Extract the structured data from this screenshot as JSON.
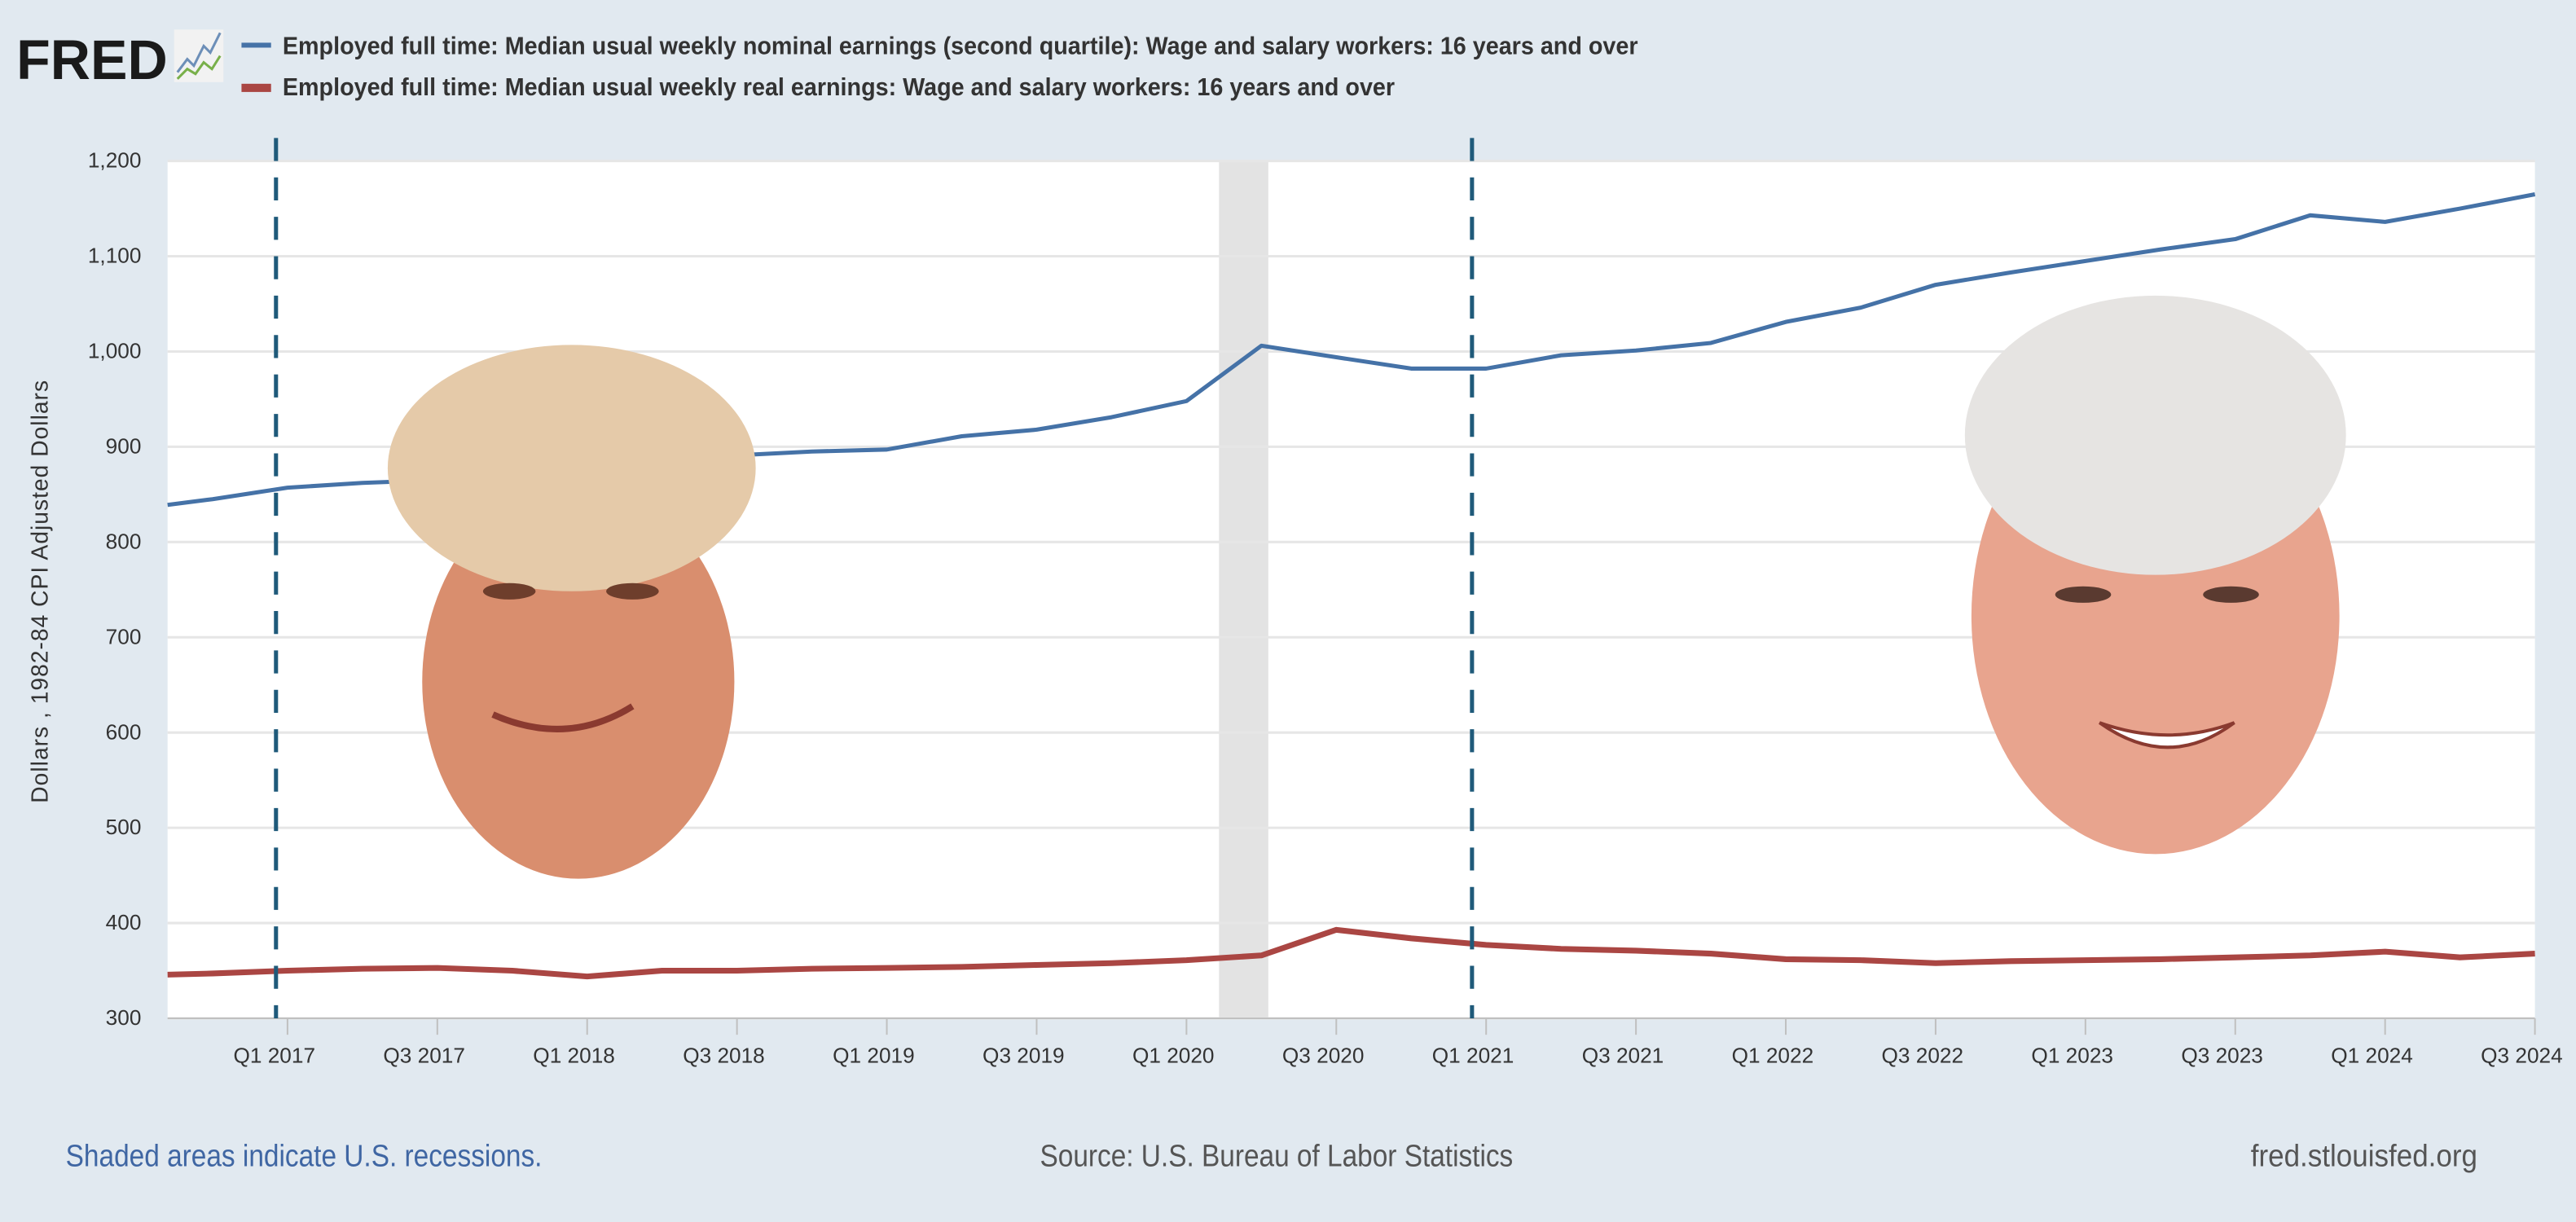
{
  "logo": {
    "text": "FRED"
  },
  "legend": [
    {
      "label": "Employed full time: Median usual weekly nominal earnings (second quartile): Wage and salary workers: 16 years and over",
      "color": "#4572a7"
    },
    {
      "label": "Employed full time: Median usual weekly real earnings: Wage and salary workers: 16 years and over",
      "color": "#aa4643"
    }
  ],
  "footer": {
    "recession_note": "Shaded areas indicate U.S. recessions.",
    "source": "Source: U.S. Bureau of Labor Statistics",
    "site": "fred.stlouisfed.org"
  },
  "chart_data": {
    "type": "line",
    "title": "",
    "xlabel": "",
    "ylabel": "Dollars , 1982-84 CPI Adjusted Dollars",
    "ylim": [
      300,
      1200
    ],
    "yticks": [
      300,
      400,
      500,
      600,
      700,
      800,
      900,
      1000,
      1100,
      1200
    ],
    "ytick_labels": [
      "300",
      "400",
      "500",
      "600",
      "700",
      "800",
      "900",
      "1,000",
      "1,100",
      "1,200"
    ],
    "grid": true,
    "x": [
      "Q3 2016",
      "Q4 2016",
      "Q1 2017",
      "Q2 2017",
      "Q3 2017",
      "Q4 2017",
      "Q1 2018",
      "Q2 2018",
      "Q3 2018",
      "Q4 2018",
      "Q1 2019",
      "Q2 2019",
      "Q3 2019",
      "Q4 2019",
      "Q1 2020",
      "Q2 2020",
      "Q3 2020",
      "Q4 2020",
      "Q1 2021",
      "Q2 2021",
      "Q3 2021",
      "Q4 2021",
      "Q1 2022",
      "Q2 2022",
      "Q3 2022",
      "Q4 2022",
      "Q1 2023",
      "Q2 2023",
      "Q3 2023",
      "Q4 2023",
      "Q1 2024",
      "Q2 2024",
      "Q3 2024"
    ],
    "xticks": [
      "Q1 2017",
      "Q3 2017",
      "Q1 2018",
      "Q3 2018",
      "Q1 2019",
      "Q3 2019",
      "Q1 2020",
      "Q3 2020",
      "Q1 2021",
      "Q3 2021",
      "Q1 2022",
      "Q3 2022",
      "Q1 2023",
      "Q3 2023",
      "Q1 2024",
      "Q3 2024"
    ],
    "series": [
      {
        "name": "Employed full time: Median usual weekly nominal earnings (second quartile): Wage and salary workers: 16 years and over",
        "color": "#4572a7",
        "values": [
          835,
          845,
          857,
          862,
          865,
          870,
          881,
          886,
          891,
          895,
          897,
          911,
          918,
          931,
          948,
          1006,
          994,
          982,
          982,
          996,
          1001,
          1009,
          1031,
          1046,
          1070,
          1083,
          1095,
          1107,
          1118,
          1143,
          1136,
          1150,
          1165
        ]
      },
      {
        "name": "Employed full time: Median usual weekly real earnings: Wage and salary workers: 16 years and over",
        "color": "#aa4643",
        "values": [
          345,
          347,
          350,
          352,
          353,
          350,
          344,
          350,
          350,
          352,
          353,
          354,
          356,
          358,
          361,
          366,
          393,
          384,
          377,
          373,
          371,
          368,
          362,
          361,
          358,
          360,
          361,
          362,
          364,
          366,
          370,
          364,
          368
        ]
      }
    ],
    "recessions": [
      {
        "start": "Feb 2020",
        "end": "Apr 2020"
      }
    ],
    "annotations": [
      {
        "type": "vertical-dashed-line",
        "at": "Jan 2017",
        "color": "#1f5a7a"
      },
      {
        "type": "vertical-dashed-line",
        "at": "Jan 2021",
        "color": "#1f5a7a"
      }
    ]
  }
}
